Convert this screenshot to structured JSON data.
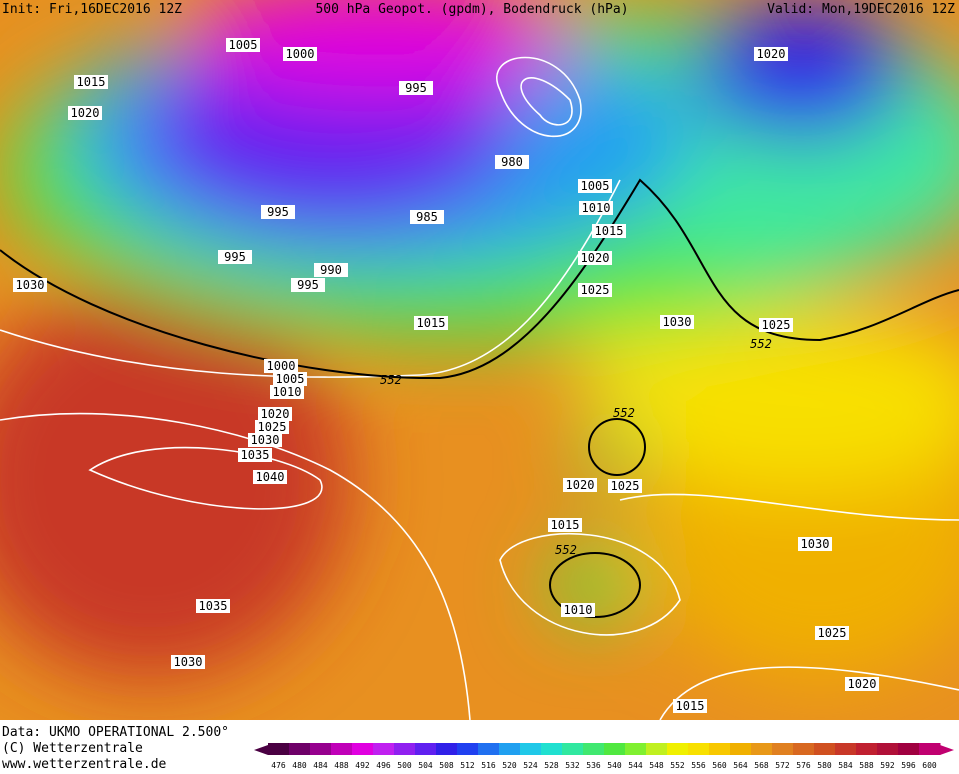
{
  "header": {
    "init": "Init: Fri,16DEC2016 12Z",
    "title": "500 hPa Geopot. (gpdm), Bodendruck (hPa)",
    "valid": "Valid: Mon,19DEC2016 12Z"
  },
  "isobar_labels": [
    "1005",
    "1000",
    "995",
    "1015",
    "1020",
    "980",
    "1005",
    "1010",
    "995",
    "985",
    "1015",
    "995",
    "1020",
    "990",
    "995",
    "1030",
    "1025",
    "1015",
    "1030",
    "1025",
    "1000",
    "1005",
    "1010",
    "1020",
    "1025",
    "1030",
    "1035",
    "1040",
    "1020",
    "1025",
    "1015",
    "1030",
    "1010",
    "1035",
    "1030",
    "1025",
    "1020",
    "1015",
    "1020"
  ],
  "contour_labels": [
    "552",
    "552",
    "552",
    "552"
  ],
  "footer": {
    "data": "Data: UKMO OPERATIONAL 2.500°",
    "copyright": "(C) Wetterzentrale",
    "url": "www.wetterzentrale.de"
  },
  "colorbar": {
    "labels": [
      476,
      480,
      484,
      488,
      492,
      496,
      500,
      504,
      508,
      512,
      516,
      520,
      524,
      528,
      532,
      536,
      540,
      544,
      548,
      552,
      556,
      560,
      564,
      568,
      572,
      576,
      580,
      584,
      588,
      592,
      596,
      600
    ],
    "colors": [
      "#4a0042",
      "#6e0068",
      "#96008e",
      "#c000b8",
      "#e000e0",
      "#c020f0",
      "#9020f0",
      "#6020f0",
      "#3020e8",
      "#2040f0",
      "#2070f0",
      "#20a0f0",
      "#20c8e8",
      "#20e0d0",
      "#30e8a0",
      "#40e870",
      "#50e840",
      "#80f030",
      "#c0f020",
      "#f0f000",
      "#f8e000",
      "#f8c800",
      "#f0b000",
      "#e89818",
      "#e08020",
      "#d86820",
      "#d05020",
      "#c83828",
      "#c02030",
      "#b01038",
      "#a00040",
      "#c00070"
    ]
  }
}
